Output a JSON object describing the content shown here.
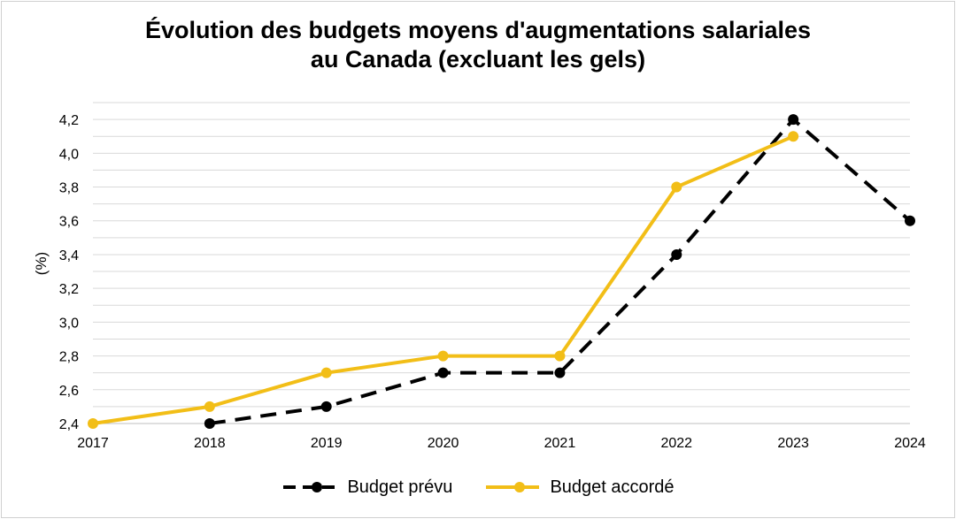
{
  "chart_data": {
    "type": "line",
    "title_lines": [
      "Évolution des budgets moyens d'augmentations salariales",
      "au Canada (excluant les gels)"
    ],
    "ylabel": "(%)",
    "xlabel": "",
    "x": [
      "2017",
      "2018",
      "2019",
      "2020",
      "2021",
      "2022",
      "2023",
      "2024"
    ],
    "ylim": [
      2.4,
      4.3
    ],
    "yticks": [
      "2,4",
      "2,6",
      "2,8",
      "3,0",
      "3,2",
      "3,4",
      "3,6",
      "3,8",
      "4,0",
      "4,2"
    ],
    "grid": true,
    "legend_position": "bottom",
    "series": [
      {
        "name": "Budget prévu",
        "color": "#000000",
        "style": "dashed",
        "values": [
          null,
          2.4,
          2.5,
          2.7,
          2.7,
          3.4,
          4.2,
          3.6
        ]
      },
      {
        "name": "Budget accordé",
        "color": "#F2BE17",
        "style": "solid",
        "values": [
          2.4,
          2.5,
          2.7,
          2.8,
          2.8,
          3.8,
          4.1,
          null
        ]
      }
    ]
  }
}
